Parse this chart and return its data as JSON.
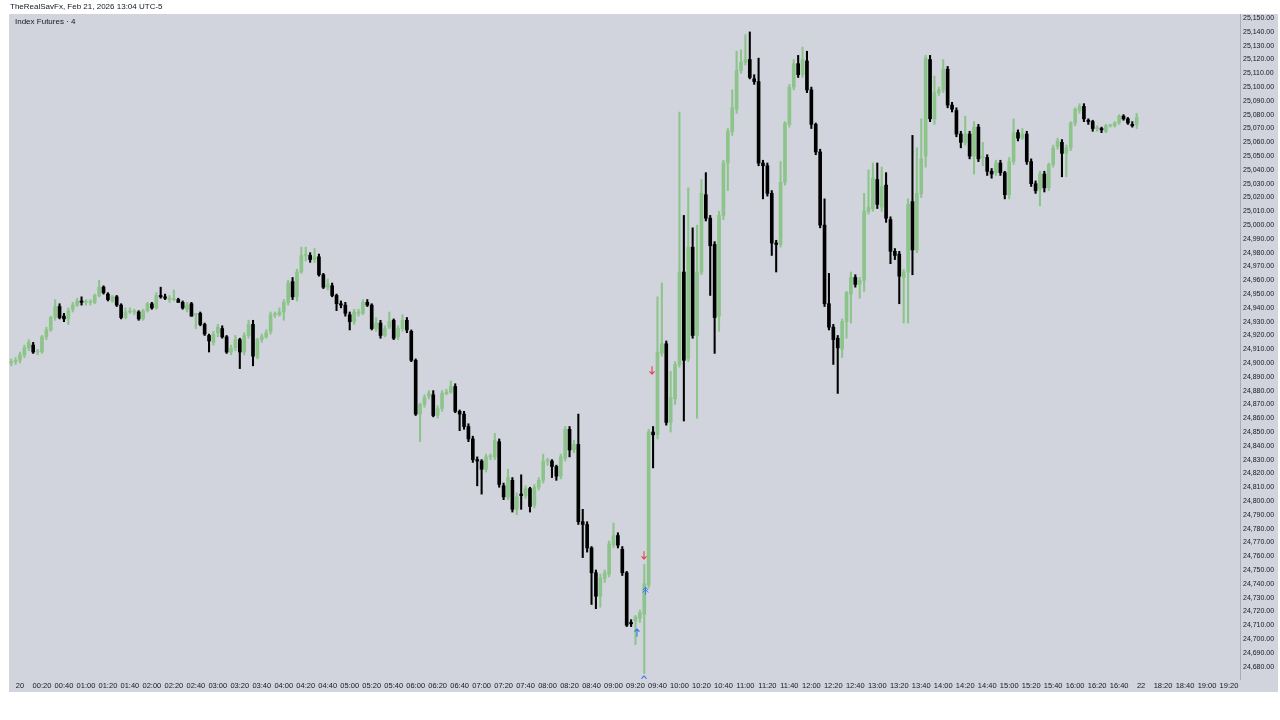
{
  "chart_data": {
    "type": "candlestick",
    "title": "Index Futures · 4",
    "annotations": [
      "TheRealSavFx, Feb 21, 2026 13:04 UTC-5"
    ],
    "categories": [
      null,
      null,
      "20",
      null,
      null,
      null,
      null,
      "00:20",
      null,
      null,
      null,
      null,
      "00:40",
      null,
      null,
      null,
      null,
      "01:00",
      null,
      null,
      null,
      null,
      "01:20",
      null,
      null,
      null,
      null,
      "01:40",
      null,
      null,
      null,
      null,
      "02:00",
      null,
      null,
      null,
      null,
      "02:20",
      null,
      null,
      null,
      null,
      "02:40",
      null,
      null,
      null,
      null,
      "03:00",
      null,
      null,
      null,
      null,
      "03:20",
      null,
      null,
      null,
      null,
      "03:40",
      null,
      null,
      null,
      null,
      "04:00",
      null,
      null,
      null,
      null,
      "04:20",
      null,
      null,
      null,
      null,
      "04:40",
      null,
      null,
      null,
      null,
      "05:00",
      null,
      null,
      null,
      null,
      "05:20",
      null,
      null,
      null,
      null,
      "05:40",
      null,
      null,
      null,
      null,
      "06:00",
      null,
      null,
      null,
      null,
      "06:20",
      null,
      null,
      null,
      null,
      "06:40",
      null,
      null,
      null,
      null,
      "07:00",
      null,
      null,
      null,
      null,
      "07:20",
      null,
      null,
      null,
      null,
      "07:40",
      null,
      null,
      null,
      null,
      "08:00",
      null,
      null,
      null,
      null,
      "08:20",
      null,
      null,
      null,
      null,
      "08:40",
      null,
      null,
      null,
      null,
      "09:00",
      null,
      null,
      null,
      null,
      "09:20",
      null,
      null,
      null,
      null,
      "09:40",
      null,
      null,
      null,
      null,
      "10:00",
      null,
      null,
      null,
      null,
      "10:20",
      null,
      null,
      null,
      null,
      "10:40",
      null,
      null,
      null,
      null,
      "11:00",
      null,
      null,
      null,
      null,
      "11:20",
      null,
      null,
      null,
      null,
      "11:40",
      null,
      null,
      null,
      null,
      "12:00",
      null,
      null,
      null,
      null,
      "12:20",
      null,
      null,
      null,
      null,
      "12:40",
      null,
      null,
      null,
      null,
      "13:00",
      null,
      null,
      null,
      null,
      "13:20",
      null,
      null,
      null,
      null,
      "13:40",
      null,
      null,
      null,
      null,
      "14:00",
      null,
      null,
      null,
      null,
      "14:20",
      null,
      null,
      null,
      null,
      "14:40",
      null,
      null,
      null,
      null,
      "15:00",
      null,
      null,
      null,
      null,
      "15:20",
      null,
      null,
      null,
      null,
      "15:40",
      null,
      null,
      null,
      null,
      "16:00",
      null,
      null,
      null,
      null,
      "16:20",
      null,
      null,
      null,
      null,
      "16:40",
      null,
      null,
      null,
      null,
      "22",
      null,
      null,
      null,
      null,
      "18:20",
      null,
      null,
      null,
      null,
      "18:40",
      null,
      null,
      null,
      null,
      "19:00",
      null,
      null,
      null,
      null,
      "19:20",
      null,
      null
    ],
    "ohlc": [
      [
        24900,
        24903,
        24898,
        24901
      ],
      [
        24901,
        24904,
        24899,
        24902
      ],
      [
        24902,
        24908,
        24900,
        24906
      ],
      [
        24906,
        24913,
        24904,
        24911
      ],
      [
        24911,
        24917,
        24909,
        24915
      ],
      [
        24913,
        24915,
        24907,
        24908
      ],
      [
        24908,
        24910,
        24906,
        24908
      ],
      [
        24908,
        24920,
        24907,
        24919
      ],
      [
        24919,
        24926,
        24917,
        24924
      ],
      [
        24924,
        24934,
        24923,
        24933
      ],
      [
        24933,
        24946,
        24931,
        24941
      ],
      [
        24941,
        24943,
        24932,
        24933
      ],
      [
        24934,
        24936,
        24930,
        24932
      ],
      [
        24932,
        24940,
        24928,
        24938
      ],
      [
        24939,
        24944,
        24937,
        24942
      ],
      [
        24942,
        24947,
        24941,
        24945
      ],
      [
        24945,
        24948,
        24942,
        24944
      ],
      [
        24944,
        24946,
        24942,
        24944
      ],
      [
        24944,
        24946,
        24942,
        24944
      ],
      [
        24944,
        24950,
        24943,
        24949
      ],
      [
        24949,
        24960,
        24948,
        24955
      ],
      [
        24955,
        24956,
        24950,
        24951
      ],
      [
        24950,
        24951,
        24945,
        24946
      ],
      [
        24945,
        24949,
        24944,
        24948
      ],
      [
        24948,
        24949,
        24941,
        24942
      ],
      [
        24942,
        24943,
        24932,
        24933
      ],
      [
        24933,
        24940,
        24932,
        24937
      ],
      [
        24937,
        24940,
        24936,
        24937
      ],
      [
        24937,
        24939,
        24935,
        24937
      ],
      [
        24937,
        24938,
        24931,
        24932
      ],
      [
        24932,
        24939,
        24931,
        24938
      ],
      [
        24938,
        24944,
        24937,
        24943
      ],
      [
        24943,
        24944,
        24939,
        24940
      ],
      [
        24940,
        24951,
        24939,
        24949
      ],
      [
        24949,
        24955,
        24947,
        24948
      ],
      [
        24948,
        24950,
        24946,
        24947
      ],
      [
        24946,
        24949,
        24944,
        24947
      ],
      [
        24946,
        24953,
        24945,
        24946
      ],
      [
        24946,
        24947,
        24944,
        24944
      ],
      [
        24944,
        24945,
        24939,
        24940
      ],
      [
        24939,
        24944,
        24937,
        24942
      ],
      [
        24943,
        24944,
        24934,
        24934
      ],
      [
        24935,
        24936,
        24925,
        24935
      ],
      [
        24936,
        24937,
        24927,
        24928
      ],
      [
        24928,
        24929,
        24920,
        24921
      ],
      [
        24920,
        24921,
        24908,
        24916
      ],
      [
        24915,
        24923,
        24913,
        24921
      ],
      [
        24922,
        24928,
        24919,
        24926
      ],
      [
        24925,
        24927,
        24918,
        24919
      ],
      [
        24919,
        24920,
        24907,
        24908
      ],
      [
        24908,
        24913,
        24906,
        24911
      ],
      [
        24911,
        24920,
        24909,
        24917
      ],
      [
        24917,
        24918,
        24896,
        24908
      ],
      [
        24908,
        24922,
        24906,
        24920
      ],
      [
        24920,
        24931,
        24918,
        24928
      ],
      [
        24928,
        24931,
        24898,
        24905
      ],
      [
        24904,
        24918,
        24903,
        24917
      ],
      [
        24917,
        24921,
        24915,
        24919
      ],
      [
        24919,
        24924,
        24918,
        24922
      ],
      [
        24923,
        24937,
        24921,
        24935
      ],
      [
        24935,
        24937,
        24933,
        24935
      ],
      [
        24935,
        24940,
        24934,
        24937
      ],
      [
        24937,
        24946,
        24931,
        24944
      ],
      [
        24944,
        24960,
        24942,
        24958
      ],
      [
        24959,
        24962,
        24946,
        24948
      ],
      [
        24948,
        24968,
        24945,
        24966
      ],
      [
        24966,
        24984,
        24965,
        24978
      ],
      [
        24978,
        24984,
        24974,
        24978
      ],
      [
        24978,
        24980,
        24973,
        24975
      ],
      [
        24975,
        24983,
        24973,
        24977
      ],
      [
        24977,
        24979,
        24963,
        24964
      ],
      [
        24964,
        24965,
        24954,
        24955
      ],
      [
        24955,
        24961,
        24953,
        24957
      ],
      [
        24956,
        24958,
        24948,
        24949
      ],
      [
        24949,
        24950,
        24938,
        24943
      ],
      [
        24943,
        24945,
        24940,
        24942
      ],
      [
        24942,
        24944,
        24934,
        24936
      ],
      [
        24935,
        24937,
        24924,
        24930
      ],
      [
        24930,
        24939,
        24928,
        24937
      ],
      [
        24936,
        24939,
        24934,
        24937
      ],
      [
        24936,
        24946,
        24935,
        24944
      ],
      [
        24944,
        24946,
        24941,
        24942
      ],
      [
        24942,
        24943,
        24924,
        24925
      ],
      [
        24925,
        24933,
        24923,
        24929
      ],
      [
        24929,
        24931,
        24918,
        24920
      ],
      [
        24920,
        24927,
        24919,
        24925
      ],
      [
        24926,
        24937,
        24925,
        24930
      ],
      [
        24931,
        24932,
        24917,
        24918
      ],
      [
        24919,
        24927,
        24917,
        24925
      ],
      [
        24925,
        24935,
        24923,
        24931
      ],
      [
        24931,
        24933,
        24922,
        24924
      ],
      [
        24923,
        24924,
        24901,
        24902
      ],
      [
        24902,
        24903,
        24862,
        24863
      ],
      [
        24863,
        24871,
        24843,
        24870
      ],
      [
        24870,
        24877,
        24868,
        24875
      ],
      [
        24876,
        24880,
        24874,
        24878
      ],
      [
        24877,
        24880,
        24861,
        24862
      ],
      [
        24862,
        24869,
        24860,
        24867
      ],
      [
        24867,
        24880,
        24865,
        24878
      ],
      [
        24878,
        24881,
        24877,
        24879
      ],
      [
        24879,
        24887,
        24878,
        24883
      ],
      [
        24883,
        24885,
        24864,
        24865
      ],
      [
        24865,
        24866,
        24851,
        24863
      ],
      [
        24863,
        24865,
        24852,
        24854
      ],
      [
        24854,
        24856,
        24843,
        24845
      ],
      [
        24845,
        24847,
        24828,
        24830
      ],
      [
        24830,
        24832,
        24811,
        24829
      ],
      [
        24829,
        24830,
        24805,
        24823
      ],
      [
        24823,
        24834,
        24821,
        24832
      ],
      [
        24832,
        24834,
        24830,
        24832
      ],
      [
        24832,
        24849,
        24830,
        24844
      ],
      [
        24843,
        24845,
        24810,
        24812
      ],
      [
        24811,
        24813,
        24801,
        24803
      ],
      [
        24803,
        24823,
        24801,
        24817
      ],
      [
        24815,
        24817,
        24792,
        24794
      ],
      [
        24794,
        24806,
        24790,
        24803
      ],
      [
        24805,
        24819,
        24794,
        24804
      ],
      [
        24804,
        24811,
        24802,
        24809
      ],
      [
        24809,
        24810,
        24792,
        24796
      ],
      [
        24797,
        24812,
        24795,
        24810
      ],
      [
        24810,
        24817,
        24808,
        24815
      ],
      [
        24815,
        24834,
        24813,
        24829
      ],
      [
        24829,
        24831,
        24826,
        24829
      ],
      [
        24829,
        24830,
        24817,
        24825
      ],
      [
        24825,
        24826,
        24815,
        24818
      ],
      [
        24818,
        24834,
        24816,
        24832
      ],
      [
        24831,
        24854,
        24829,
        24852
      ],
      [
        24852,
        24854,
        24832,
        24837
      ],
      [
        24837,
        24844,
        24835,
        24841
      ],
      [
        24841,
        24863,
        24783,
        24785
      ],
      [
        24785,
        24794,
        24759,
        24783
      ],
      [
        24783,
        24785,
        24763,
        24766
      ],
      [
        24766,
        24767,
        24725,
        24748
      ],
      [
        24748,
        24750,
        24722,
        24731
      ],
      [
        24731,
        24747,
        24723,
        24744
      ],
      [
        24744,
        24750,
        24741,
        24748
      ],
      [
        24747,
        24771,
        24745,
        24769
      ],
      [
        24768,
        24784,
        24766,
        24775
      ],
      [
        24775,
        24777,
        24766,
        24768
      ],
      [
        24765,
        24767,
        24746,
        24748
      ],
      [
        24748,
        24749,
        24709,
        24710
      ],
      [
        24712,
        24714,
        24709,
        24711
      ],
      [
        24713,
        24717,
        24696,
        24716
      ],
      [
        24715,
        24721,
        24712,
        24719
      ],
      [
        24718,
        24754,
        24675,
        24740
      ],
      [
        24739,
        24852,
        24737,
        24850
      ],
      [
        24850,
        24854,
        24824,
        24848
      ],
      [
        24848,
        24948,
        24845,
        24908
      ],
      [
        24907,
        24958,
        24905,
        24914
      ],
      [
        24914,
        24916,
        24855,
        24857
      ],
      [
        24857,
        24894,
        24850,
        24875
      ],
      [
        24874,
        24901,
        24870,
        24899
      ],
      [
        24899,
        25082,
        24897,
        24966
      ],
      [
        24966,
        25007,
        24858,
        24902
      ],
      [
        24903,
        25027,
        24901,
        24984
      ],
      [
        24984,
        24998,
        24918,
        24920
      ],
      [
        24920,
        25000,
        24860,
        24966
      ],
      [
        24966,
        25033,
        24964,
        25023
      ],
      [
        25022,
        25038,
        25003,
        25005
      ],
      [
        25005,
        25007,
        24949,
        24985
      ],
      [
        24986,
        24988,
        24907,
        24933
      ],
      [
        24934,
        25010,
        24923,
        25007
      ],
      [
        25007,
        25047,
        25004,
        25045
      ],
      [
        25045,
        25070,
        25025,
        25068
      ],
      [
        25068,
        25098,
        25065,
        25085
      ],
      [
        25084,
        25126,
        25081,
        25112
      ],
      [
        25112,
        25127,
        25110,
        25118
      ],
      [
        25118,
        25138,
        25116,
        25120
      ],
      [
        25120,
        25140,
        25106,
        25107
      ],
      [
        25106,
        25109,
        25102,
        25104
      ],
      [
        25104,
        25121,
        25043,
        25045
      ],
      [
        25045,
        25047,
        25019,
        25043
      ],
      [
        25043,
        25045,
        25021,
        25023
      ],
      [
        25023,
        25025,
        24978,
        24987
      ],
      [
        24987,
        24989,
        24966,
        24986
      ],
      [
        24986,
        25046,
        24984,
        25031
      ],
      [
        25031,
        25075,
        25029,
        25074
      ],
      [
        25073,
        25102,
        25071,
        25100
      ],
      [
        25100,
        25120,
        25098,
        25117
      ],
      [
        25117,
        25123,
        25107,
        25109
      ],
      [
        25109,
        25129,
        25107,
        25120
      ],
      [
        25119,
        25126,
        25096,
        25098
      ],
      [
        25098,
        25100,
        25070,
        25073
      ],
      [
        25073,
        25074,
        25051,
        25053
      ],
      [
        25053,
        25055,
        24998,
        25000
      ],
      [
        25000,
        25019,
        24941,
        24943
      ],
      [
        24943,
        24965,
        24924,
        24926
      ],
      [
        24926,
        24928,
        24899,
        24917
      ],
      [
        24918,
        24920,
        24878,
        24911
      ],
      [
        24910,
        24932,
        24904,
        24930
      ],
      [
        24930,
        24952,
        24918,
        24951
      ],
      [
        24950,
        24966,
        24929,
        24962
      ],
      [
        24962,
        24964,
        24955,
        24957
      ],
      [
        24957,
        24962,
        24947,
        24960
      ],
      [
        24960,
        25023,
        24952,
        25010
      ],
      [
        25010,
        25040,
        25008,
        25013
      ],
      [
        25012,
        25045,
        25010,
        25034
      ],
      [
        25033,
        25045,
        25012,
        25015
      ],
      [
        25013,
        25042,
        25010,
        25028
      ],
      [
        25029,
        25038,
        25002,
        25005
      ],
      [
        25004,
        25006,
        24972,
        24981
      ],
      [
        24981,
        24983,
        24975,
        24978
      ],
      [
        24979,
        24981,
        24943,
        24963
      ],
      [
        24962,
        24968,
        24929,
        24966
      ],
      [
        24966,
        25019,
        24929,
        25015
      ],
      [
        25017,
        25065,
        24964,
        24982
      ],
      [
        24982,
        25056,
        24980,
        25023
      ],
      [
        25023,
        25077,
        25020,
        25048
      ],
      [
        25050,
        25123,
        25042,
        25121
      ],
      [
        25120,
        25123,
        25075,
        25077
      ],
      [
        25077,
        25108,
        25073,
        25096
      ],
      [
        25096,
        25100,
        25094,
        25098
      ],
      [
        25098,
        25120,
        25096,
        25113
      ],
      [
        25113,
        25115,
        25085,
        25087
      ],
      [
        25087,
        25089,
        25082,
        25084
      ],
      [
        25083,
        25085,
        25064,
        25066
      ],
      [
        25066,
        25068,
        25056,
        25060
      ],
      [
        25060,
        25079,
        25058,
        25066
      ],
      [
        25066,
        25068,
        25048,
        25050
      ],
      [
        25050,
        25075,
        25037,
        25071
      ],
      [
        25071,
        25073,
        25046,
        25048
      ],
      [
        25049,
        25060,
        25043,
        25049
      ],
      [
        25049,
        25051,
        25036,
        25039
      ],
      [
        25039,
        25041,
        25034,
        25037
      ],
      [
        25038,
        25047,
        25036,
        25045
      ],
      [
        25045,
        25047,
        25036,
        25038
      ],
      [
        25038,
        25039,
        25019,
        25022
      ],
      [
        25022,
        25049,
        25019,
        25046
      ],
      [
        25046,
        25077,
        25044,
        25067
      ],
      [
        25067,
        25069,
        25061,
        25063
      ],
      [
        25063,
        25070,
        25062,
        25066
      ],
      [
        25066,
        25068,
        25044,
        25046
      ],
      [
        25046,
        25048,
        25028,
        25030
      ],
      [
        25030,
        25032,
        25023,
        25025
      ],
      [
        25026,
        25039,
        25014,
        25037
      ],
      [
        25037,
        25039,
        25024,
        25027
      ],
      [
        25027,
        25045,
        25025,
        25044
      ],
      [
        25044,
        25058,
        25042,
        25056
      ],
      [
        25057,
        25063,
        25055,
        25061
      ],
      [
        25060,
        25062,
        25035,
        25052
      ],
      [
        25052,
        25058,
        25035,
        25056
      ],
      [
        25056,
        25075,
        25054,
        25074
      ],
      [
        25074,
        25085,
        25072,
        25084
      ],
      [
        25083,
        25088,
        25081,
        25086
      ],
      [
        25086,
        25088,
        25075,
        25077
      ],
      [
        25076,
        25077,
        25073,
        25075
      ],
      [
        25075,
        25076,
        25068,
        25070
      ],
      [
        25070,
        25072,
        25068,
        25070
      ],
      [
        25070,
        25071,
        25067,
        25069
      ],
      [
        25068,
        25073,
        25067,
        25072
      ],
      [
        25072,
        25073,
        25071,
        25072
      ],
      [
        25072,
        25075,
        25071,
        25074
      ],
      [
        25074,
        25080,
        25073,
        25079
      ],
      [
        25079,
        25080,
        25076,
        25077
      ],
      [
        25077,
        25078,
        25073,
        25074
      ],
      [
        25073,
        25075,
        25071,
        25072
      ],
      [
        25073,
        25081,
        25070,
        25078
      ],
      null,
      null,
      null,
      null,
      null,
      null,
      null,
      null,
      null,
      null,
      null,
      null,
      null,
      null,
      null,
      null,
      null,
      null,
      null,
      null,
      null,
      null,
      null
    ],
    "colors": [
      "#8cc48a",
      "#8cc48a",
      "#8cc48a",
      "#8cc48a",
      "#8cc48a",
      "#000000",
      "#8cc48a",
      "#8cc48a",
      "#8cc48a",
      "#8cc48a",
      "#8cc48a",
      "#000000",
      "#000000",
      "#8cc48a",
      "#8cc48a",
      "#8cc48a",
      "#000000",
      "#8cc48a",
      "#8cc48a",
      "#8cc48a",
      "#8cc48a",
      "#000000",
      "#000000",
      "#8cc48a",
      "#000000",
      "#000000",
      "#8cc48a",
      "#8cc48a",
      "#8cc48a",
      "#000000",
      "#8cc48a",
      "#8cc48a",
      "#000000",
      "#8cc48a",
      "#000000",
      "#000000",
      "#8cc48a",
      "#8cc48a",
      "#000000",
      "#000000",
      "#8cc48a",
      "#000000",
      "#8cc48a",
      "#000000",
      "#000000",
      "#000000",
      "#8cc48a",
      "#8cc48a",
      "#000000",
      "#000000",
      "#8cc48a",
      "#8cc48a",
      "#000000",
      "#8cc48a",
      "#8cc48a",
      "#000000",
      "#8cc48a",
      "#8cc48a",
      "#8cc48a",
      "#8cc48a",
      "#8cc48a",
      "#8cc48a",
      "#8cc48a",
      "#8cc48a",
      "#000000",
      "#8cc48a",
      "#8cc48a",
      "#8cc48a",
      "#000000",
      "#8cc48a",
      "#000000",
      "#000000",
      "#8cc48a",
      "#000000",
      "#000000",
      "#000000",
      "#000000",
      "#000000",
      "#8cc48a",
      "#8cc48a",
      "#8cc48a",
      "#000000",
      "#000000",
      "#8cc48a",
      "#000000",
      "#8cc48a",
      "#8cc48a",
      "#000000",
      "#8cc48a",
      "#8cc48a",
      "#000000",
      "#000000",
      "#000000",
      "#8cc48a",
      "#8cc48a",
      "#8cc48a",
      "#000000",
      "#8cc48a",
      "#8cc48a",
      "#8cc48a",
      "#8cc48a",
      "#000000",
      "#000000",
      "#000000",
      "#000000",
      "#000000",
      "#000000",
      "#000000",
      "#8cc48a",
      "#8cc48a",
      "#8cc48a",
      "#000000",
      "#000000",
      "#8cc48a",
      "#000000",
      "#8cc48a",
      "#000000",
      "#8cc48a",
      "#000000",
      "#8cc48a",
      "#8cc48a",
      "#8cc48a",
      "#8cc48a",
      "#000000",
      "#000000",
      "#8cc48a",
      "#8cc48a",
      "#000000",
      "#8cc48a",
      "#000000",
      "#000000",
      "#000000",
      "#000000",
      "#000000",
      "#8cc48a",
      "#8cc48a",
      "#8cc48a",
      "#8cc48a",
      "#000000",
      "#000000",
      "#000000",
      "#000000",
      "#8cc48a",
      "#8cc48a",
      "#8cc48a",
      "#8cc48a",
      "#000000",
      "#8cc48a",
      "#8cc48a",
      "#000000",
      "#8cc48a",
      "#8cc48a",
      "#8cc48a",
      "#000000",
      "#8cc48a",
      "#000000",
      "#8cc48a",
      "#8cc48a",
      "#000000",
      "#000000",
      "#000000",
      "#8cc48a",
      "#8cc48a",
      "#8cc48a",
      "#8cc48a",
      "#8cc48a",
      "#8cc48a",
      "#8cc48a",
      "#000000",
      "#000000",
      "#000000",
      "#000000",
      "#000000",
      "#000000",
      "#000000",
      "#8cc48a",
      "#8cc48a",
      "#8cc48a",
      "#8cc48a",
      "#000000",
      "#8cc48a",
      "#000000",
      "#000000",
      "#000000",
      "#000000",
      "#000000",
      "#000000",
      "#000000",
      "#000000",
      "#8cc48a",
      "#8cc48a",
      "#8cc48a",
      "#000000",
      "#8cc48a",
      "#8cc48a",
      "#8cc48a",
      "#8cc48a",
      "#000000",
      "#8cc48a",
      "#000000",
      "#000000",
      "#000000",
      "#000000",
      "#8cc48a",
      "#8cc48a",
      "#000000",
      "#8cc48a",
      "#8cc48a",
      "#8cc48a",
      "#000000",
      "#8cc48a",
      "#8cc48a",
      "#8cc48a",
      "#000000",
      "#000000",
      "#000000",
      "#000000",
      "#8cc48a",
      "#000000",
      "#8cc48a",
      "#000000",
      "#8cc48a",
      "#000000",
      "#000000",
      "#8cc48a",
      "#000000",
      "#000000",
      "#8cc48a",
      "#8cc48a",
      "#000000",
      "#8cc48a",
      "#000000",
      "#000000",
      "#000000",
      "#8cc48a",
      "#000000",
      "#8cc48a",
      "#8cc48a",
      "#8cc48a",
      "#000000",
      "#8cc48a",
      "#8cc48a",
      "#8cc48a",
      "#8cc48a",
      "#000000",
      "#000000",
      "#000000",
      "#8cc48a",
      "#000000",
      "#8cc48a",
      "#8cc48a",
      "#8cc48a",
      "#8cc48a",
      "#000000",
      "#000000",
      "#000000",
      "#8cc48a",
      null,
      null,
      null,
      null,
      null,
      null,
      null,
      null,
      null,
      null,
      null,
      null,
      null,
      null,
      null,
      null,
      null,
      null,
      null,
      null,
      null,
      null,
      null
    ],
    "ylim": [
      24671,
      25153
    ],
    "yticks": [
      {
        "value": 24680,
        "label": "24,680.00"
      },
      {
        "value": 24690,
        "label": "24,690.00"
      },
      {
        "value": 24700,
        "label": "24,700.00"
      },
      {
        "value": 24710,
        "label": "24,710.00"
      },
      {
        "value": 24720,
        "label": "24,720.00"
      },
      {
        "value": 24730,
        "label": "24,730.00"
      },
      {
        "value": 24740,
        "label": "24,740.00"
      },
      {
        "value": 24750,
        "label": "24,750.00"
      },
      {
        "value": 24760,
        "label": "24,760.00"
      },
      {
        "value": 24770,
        "label": "24,770.00"
      },
      {
        "value": 24780,
        "label": "24,780.00"
      },
      {
        "value": 24790,
        "label": "24,790.00"
      },
      {
        "value": 24800,
        "label": "24,800.00"
      },
      {
        "value": 24810,
        "label": "24,810.00"
      },
      {
        "value": 24820,
        "label": "24,820.00"
      },
      {
        "value": 24830,
        "label": "24,830.00"
      },
      {
        "value": 24840,
        "label": "24,840.00"
      },
      {
        "value": 24850,
        "label": "24,850.00"
      },
      {
        "value": 24860,
        "label": "24,860.00"
      },
      {
        "value": 24870,
        "label": "24,870.00"
      },
      {
        "value": 24880,
        "label": "24,880.00"
      },
      {
        "value": 24890,
        "label": "24,890.00"
      },
      {
        "value": 24900,
        "label": "24,900.00"
      },
      {
        "value": 24910,
        "label": "24,910.00"
      },
      {
        "value": 24920,
        "label": "24,920.00"
      },
      {
        "value": 24930,
        "label": "24,930.00"
      },
      {
        "value": 24940,
        "label": "24,940.00"
      },
      {
        "value": 24950,
        "label": "24,950.00"
      },
      {
        "value": 24960,
        "label": "24,960.00"
      },
      {
        "value": 24970,
        "label": "24,970.00"
      },
      {
        "value": 24980,
        "label": "24,980.00"
      },
      {
        "value": 24990,
        "label": "24,990.00"
      },
      {
        "value": 25000,
        "label": "25,000.00"
      },
      {
        "value": 25010,
        "label": "25,010.00"
      },
      {
        "value": 25020,
        "label": "25,020.00"
      },
      {
        "value": 25030,
        "label": "25,030.00"
      },
      {
        "value": 25040,
        "label": "25,040.00"
      },
      {
        "value": 25050,
        "label": "25,050.00"
      },
      {
        "value": 25060,
        "label": "25,060.00"
      },
      {
        "value": 25070,
        "label": "25,070.00"
      },
      {
        "value": 25080,
        "label": "25,080.00"
      },
      {
        "value": 25090,
        "label": "25,090.00"
      },
      {
        "value": 25100,
        "label": "25,100.00"
      },
      {
        "value": 25110,
        "label": "25,110.00"
      },
      {
        "value": 25120,
        "label": "25,120.00"
      },
      {
        "value": 25130,
        "label": "25,130.00"
      },
      {
        "value": 25140,
        "label": "25,140.00"
      },
      {
        "value": 25150,
        "label": "25,150.00"
      }
    ]
  }
}
